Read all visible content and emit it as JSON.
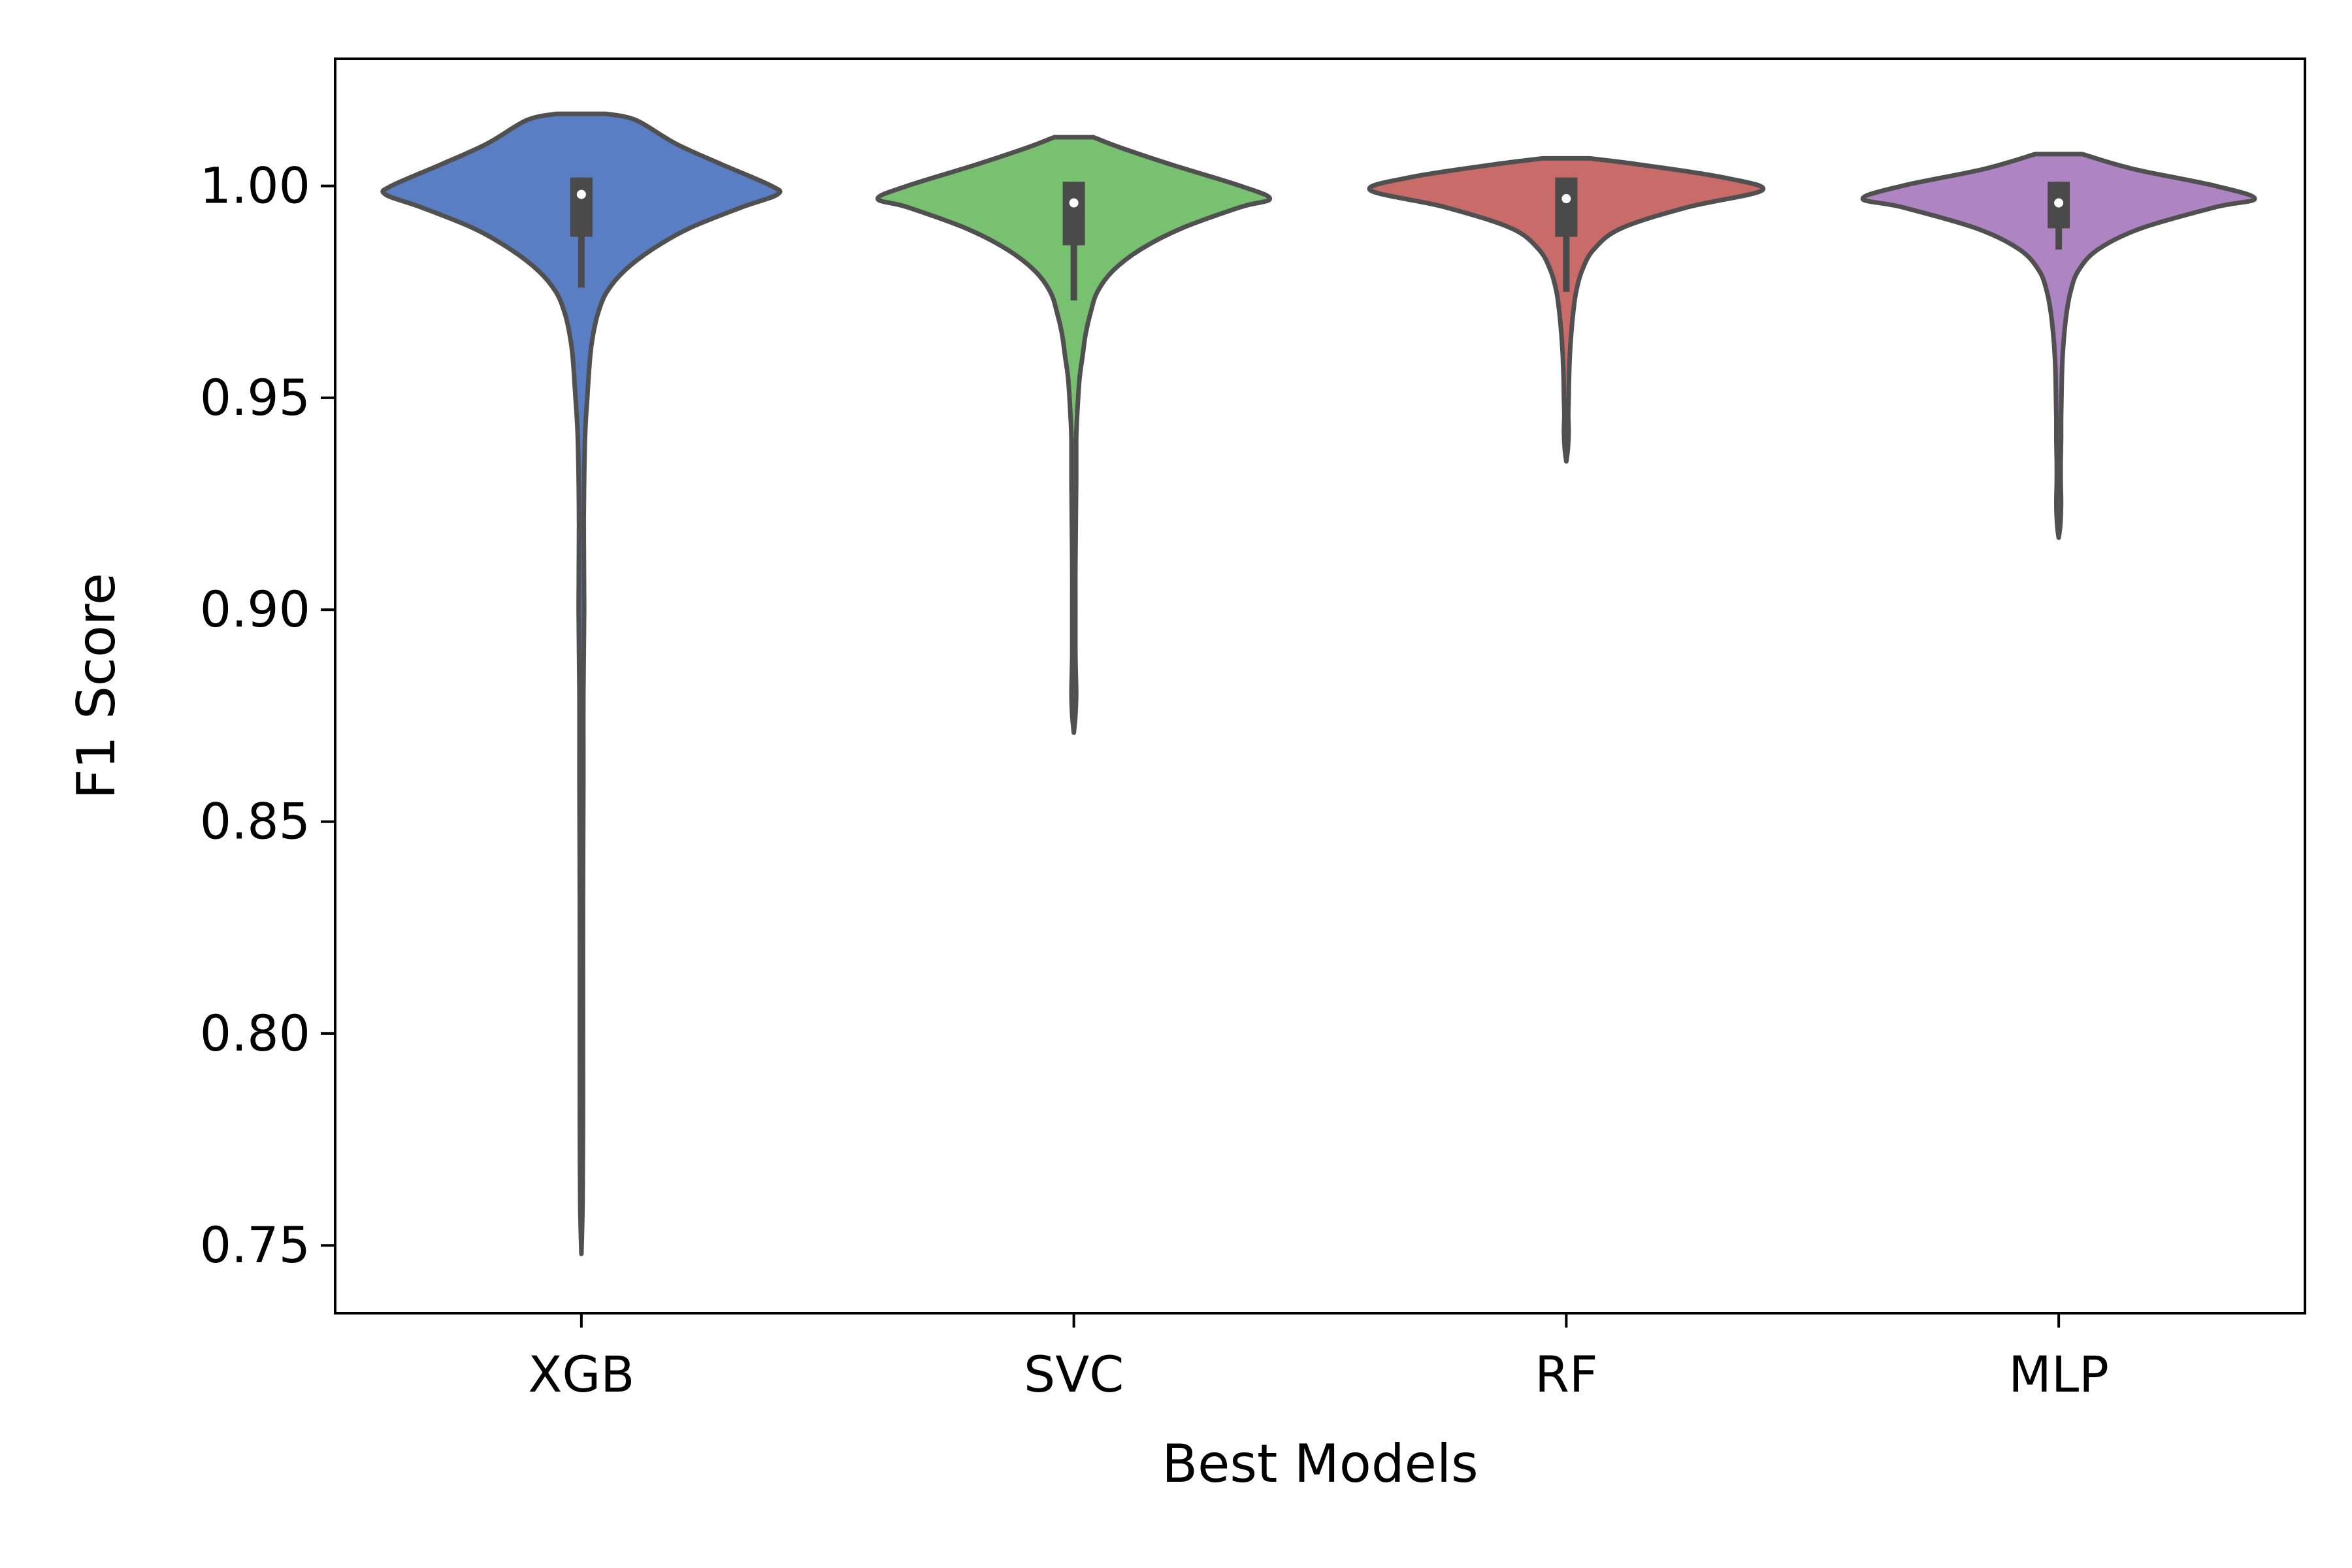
{
  "chart_data": {
    "type": "violin",
    "xlabel": "Best Models",
    "ylabel": "F1 Score",
    "ylim": [
      0.734,
      1.03
    ],
    "y_ticks": [
      0.75,
      0.8,
      0.85,
      0.9,
      0.95,
      1.0
    ],
    "y_tick_labels": [
      "0.75",
      "0.80",
      "0.85",
      "0.90",
      "0.95",
      "1.00"
    ],
    "categories": [
      "XGB",
      "SVC",
      "RF",
      "MLP"
    ],
    "grid": false,
    "legend": "none",
    "series": [
      {
        "category": "XGB",
        "color": "#5a7ec4",
        "median": 0.998,
        "q1": 0.988,
        "q3": 1.002,
        "whisker_low": 0.976,
        "whisker_high": 1.002,
        "density": [
          [
            0.748,
            0.0
          ],
          [
            0.76,
            0.006
          ],
          [
            0.78,
            0.008
          ],
          [
            0.8,
            0.008
          ],
          [
            0.83,
            0.008
          ],
          [
            0.86,
            0.01
          ],
          [
            0.88,
            0.01
          ],
          [
            0.9,
            0.014
          ],
          [
            0.92,
            0.012
          ],
          [
            0.94,
            0.018
          ],
          [
            0.95,
            0.03
          ],
          [
            0.96,
            0.045
          ],
          [
            0.965,
            0.06
          ],
          [
            0.97,
            0.085
          ],
          [
            0.975,
            0.13
          ],
          [
            0.98,
            0.22
          ],
          [
            0.985,
            0.36
          ],
          [
            0.99,
            0.55
          ],
          [
            0.995,
            0.82
          ],
          [
            0.998,
            1.0
          ],
          [
            1.0,
            0.97
          ],
          [
            1.005,
            0.72
          ],
          [
            1.01,
            0.48
          ],
          [
            1.0155,
            0.28
          ],
          [
            1.017,
            0.13
          ]
        ]
      },
      {
        "category": "SVC",
        "color": "#77c170",
        "median": 0.996,
        "q1": 0.986,
        "q3": 1.001,
        "whisker_low": 0.973,
        "whisker_high": 1.001,
        "density": [
          [
            0.871,
            0.0
          ],
          [
            0.875,
            0.008
          ],
          [
            0.88,
            0.012
          ],
          [
            0.885,
            0.01
          ],
          [
            0.89,
            0.008
          ],
          [
            0.9,
            0.008
          ],
          [
            0.91,
            0.008
          ],
          [
            0.92,
            0.01
          ],
          [
            0.93,
            0.012
          ],
          [
            0.94,
            0.012
          ],
          [
            0.945,
            0.016
          ],
          [
            0.95,
            0.022
          ],
          [
            0.955,
            0.03
          ],
          [
            0.96,
            0.045
          ],
          [
            0.965,
            0.06
          ],
          [
            0.97,
            0.085
          ],
          [
            0.975,
            0.12
          ],
          [
            0.98,
            0.2
          ],
          [
            0.985,
            0.34
          ],
          [
            0.99,
            0.55
          ],
          [
            0.995,
            0.85
          ],
          [
            0.997,
            1.0
          ],
          [
            1.0,
            0.85
          ],
          [
            1.005,
            0.5
          ],
          [
            1.009,
            0.24
          ],
          [
            1.0115,
            0.1
          ]
        ]
      },
      {
        "category": "RF",
        "color": "#c96b68",
        "median": 0.997,
        "q1": 0.988,
        "q3": 1.002,
        "whisker_low": 0.975,
        "whisker_high": 1.002,
        "density": [
          [
            0.935,
            0.0
          ],
          [
            0.938,
            0.008
          ],
          [
            0.942,
            0.012
          ],
          [
            0.946,
            0.01
          ],
          [
            0.95,
            0.012
          ],
          [
            0.955,
            0.014
          ],
          [
            0.96,
            0.018
          ],
          [
            0.965,
            0.025
          ],
          [
            0.97,
            0.035
          ],
          [
            0.975,
            0.05
          ],
          [
            0.98,
            0.08
          ],
          [
            0.985,
            0.14
          ],
          [
            0.99,
            0.28
          ],
          [
            0.995,
            0.62
          ],
          [
            0.999,
            1.0
          ],
          [
            1.002,
            0.8
          ],
          [
            1.005,
            0.38
          ],
          [
            1.0065,
            0.12
          ]
        ]
      },
      {
        "category": "MLP",
        "color": "#ae84c2",
        "median": 0.996,
        "q1": 0.99,
        "q3": 1.001,
        "whisker_low": 0.985,
        "whisker_high": 1.001,
        "density": [
          [
            0.917,
            0.0
          ],
          [
            0.92,
            0.008
          ],
          [
            0.925,
            0.012
          ],
          [
            0.93,
            0.01
          ],
          [
            0.935,
            0.01
          ],
          [
            0.94,
            0.012
          ],
          [
            0.945,
            0.012
          ],
          [
            0.95,
            0.014
          ],
          [
            0.955,
            0.016
          ],
          [
            0.96,
            0.02
          ],
          [
            0.965,
            0.028
          ],
          [
            0.97,
            0.04
          ],
          [
            0.975,
            0.06
          ],
          [
            0.98,
            0.1
          ],
          [
            0.985,
            0.2
          ],
          [
            0.99,
            0.42
          ],
          [
            0.995,
            0.8
          ],
          [
            0.997,
            1.0
          ],
          [
            1.0,
            0.8
          ],
          [
            1.004,
            0.38
          ],
          [
            1.0075,
            0.12
          ]
        ]
      }
    ]
  }
}
